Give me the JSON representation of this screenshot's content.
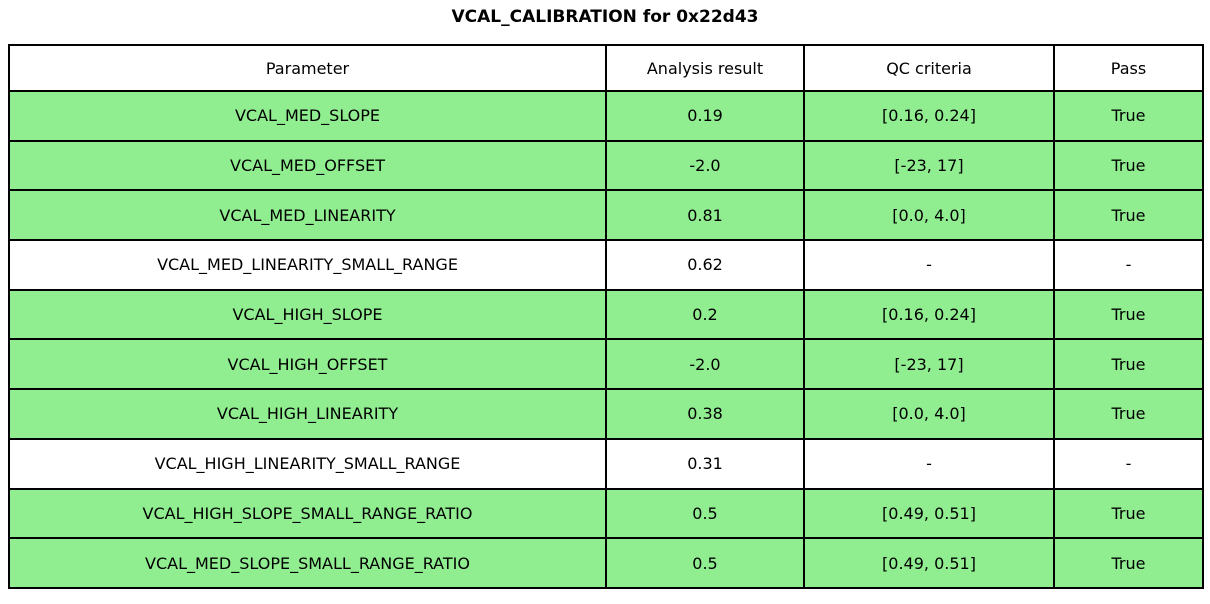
{
  "colors": {
    "pass_row_green": "#90EE90",
    "neutral_row_white": "#FFFFFF",
    "border_black": "#000000",
    "text_black": "#000000"
  },
  "chart_data": {
    "type": "table",
    "title": "VCAL_CALIBRATION for 0x22d43",
    "columns": [
      "Parameter",
      "Analysis result",
      "QC criteria",
      "Pass"
    ],
    "rows": [
      {
        "parameter": "VCAL_MED_SLOPE",
        "result": "0.19",
        "criteria": "[0.16, 0.24]",
        "pass": "True",
        "highlight": true
      },
      {
        "parameter": "VCAL_MED_OFFSET",
        "result": "-2.0",
        "criteria": "[-23, 17]",
        "pass": "True",
        "highlight": true
      },
      {
        "parameter": "VCAL_MED_LINEARITY",
        "result": "0.81",
        "criteria": "[0.0, 4.0]",
        "pass": "True",
        "highlight": true
      },
      {
        "parameter": "VCAL_MED_LINEARITY_SMALL_RANGE",
        "result": "0.62",
        "criteria": "-",
        "pass": "-",
        "highlight": false
      },
      {
        "parameter": "VCAL_HIGH_SLOPE",
        "result": "0.2",
        "criteria": "[0.16, 0.24]",
        "pass": "True",
        "highlight": true
      },
      {
        "parameter": "VCAL_HIGH_OFFSET",
        "result": "-2.0",
        "criteria": "[-23, 17]",
        "pass": "True",
        "highlight": true
      },
      {
        "parameter": "VCAL_HIGH_LINEARITY",
        "result": "0.38",
        "criteria": "[0.0, 4.0]",
        "pass": "True",
        "highlight": true
      },
      {
        "parameter": "VCAL_HIGH_LINEARITY_SMALL_RANGE",
        "result": "0.31",
        "criteria": "-",
        "pass": "-",
        "highlight": false
      },
      {
        "parameter": "VCAL_HIGH_SLOPE_SMALL_RANGE_RATIO",
        "result": "0.5",
        "criteria": "[0.49, 0.51]",
        "pass": "True",
        "highlight": true
      },
      {
        "parameter": "VCAL_MED_SLOPE_SMALL_RANGE_RATIO",
        "result": "0.5",
        "criteria": "[0.49, 0.51]",
        "pass": "True",
        "highlight": true
      }
    ],
    "legend": "green row = QC criteria applied and passed; white row = informational only",
    "grid": "full cell borders"
  }
}
